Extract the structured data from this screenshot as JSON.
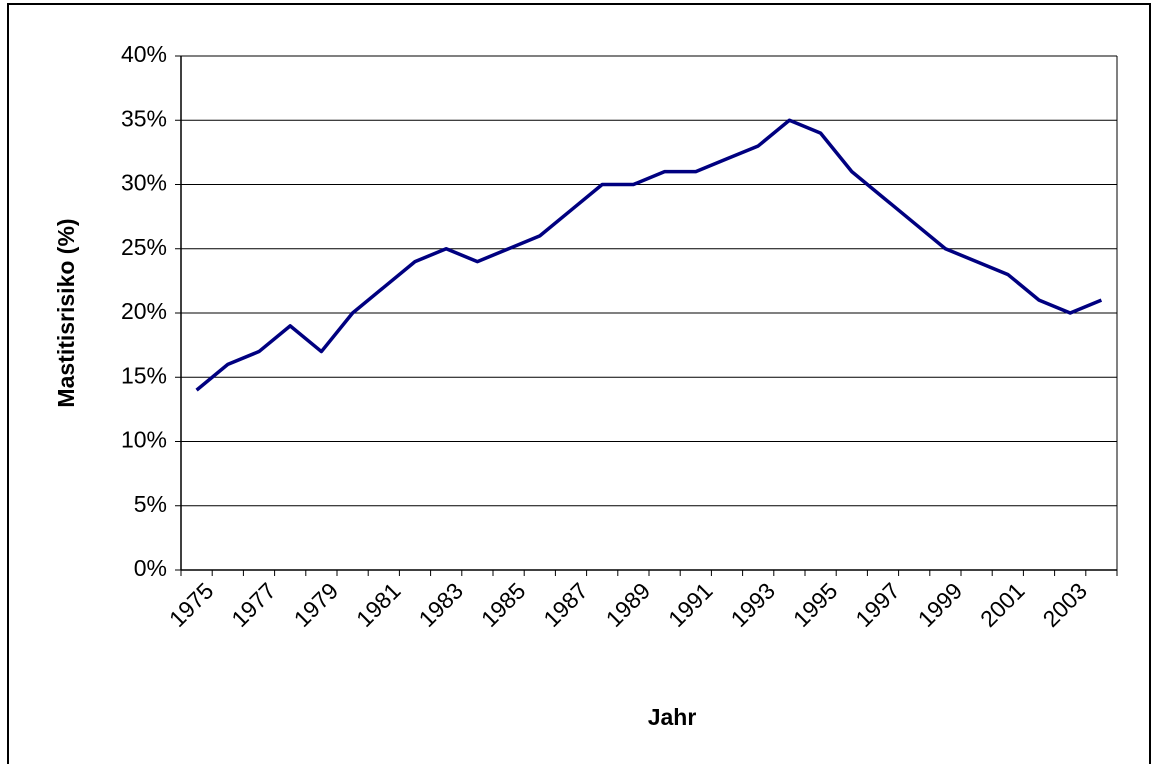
{
  "chart_data": {
    "type": "line",
    "x_label": "Jahr",
    "y_label": "Mastitisrisiko (%)",
    "categories": [
      "1975",
      null,
      "1977",
      null,
      "1979",
      null,
      "1981",
      null,
      "1983",
      null,
      "1985",
      null,
      "1987",
      null,
      "1989",
      null,
      "1991",
      null,
      "1993",
      null,
      "1995",
      null,
      "1997",
      null,
      "1999",
      null,
      "2001",
      null,
      "2003",
      null
    ],
    "values": [
      14,
      16,
      17,
      19,
      17,
      20,
      22,
      24,
      25,
      24,
      25,
      26,
      28,
      30,
      30,
      31,
      31,
      32,
      33,
      35,
      34,
      31,
      29,
      27,
      25,
      24,
      23,
      21,
      20,
      21
    ],
    "color": "#000080",
    "ylim": [
      0,
      40
    ],
    "yticks": [
      {
        "value": 0,
        "label": "0%"
      },
      {
        "value": 5,
        "label": "5%"
      },
      {
        "value": 10,
        "label": "10%"
      },
      {
        "value": 15,
        "label": "15%"
      },
      {
        "value": 20,
        "label": "20%"
      },
      {
        "value": 25,
        "label": "25%"
      },
      {
        "value": 30,
        "label": "30%"
      },
      {
        "value": 35,
        "label": "35%"
      },
      {
        "value": 40,
        "label": "40%"
      }
    ],
    "grid": true
  }
}
